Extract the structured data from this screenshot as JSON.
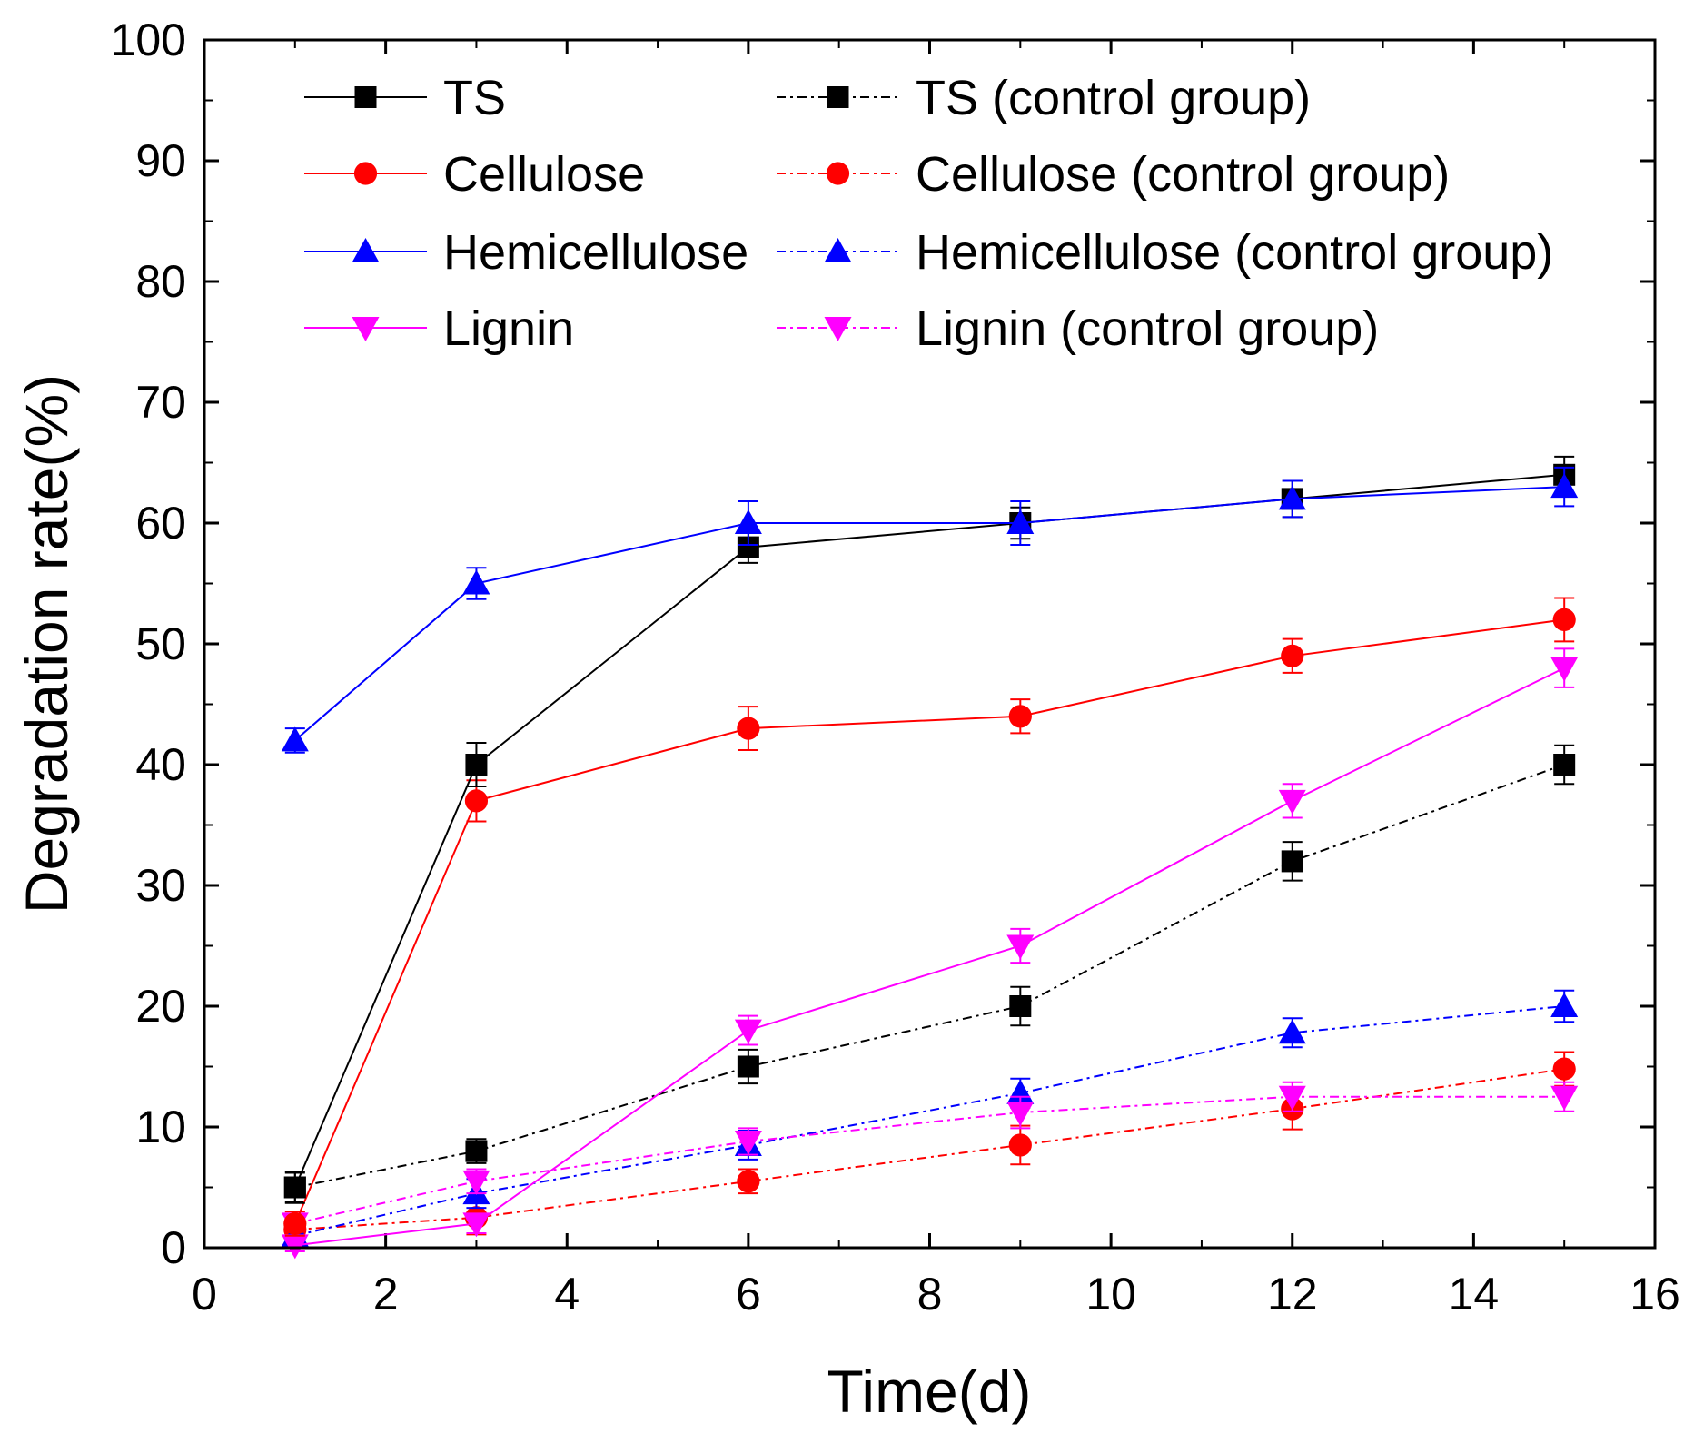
{
  "chart_data": {
    "type": "line",
    "title": "",
    "xlabel": "Time(d)",
    "ylabel": "Degradation rate(%)",
    "xlim": [
      0,
      16
    ],
    "ylim": [
      0,
      100
    ],
    "xticks": [
      0,
      2,
      4,
      6,
      8,
      10,
      12,
      14,
      16
    ],
    "yticks": [
      0,
      10,
      20,
      30,
      40,
      50,
      60,
      70,
      80,
      90,
      100
    ],
    "x": [
      1,
      3,
      6,
      9,
      12,
      15
    ],
    "legend_position": "top-left, two columns",
    "series": [
      {
        "name": "TS",
        "color": "#000000",
        "marker": "square",
        "line": "solid",
        "values": [
          5,
          40,
          58,
          60,
          62,
          64
        ],
        "errors": [
          1.3,
          1.8,
          1.3,
          1.3,
          1.5,
          1.5
        ]
      },
      {
        "name": "Cellulose",
        "color": "#ff0000",
        "marker": "circle",
        "line": "solid",
        "values": [
          2,
          37,
          43,
          44,
          49,
          52
        ],
        "errors": [
          1.0,
          1.7,
          1.8,
          1.4,
          1.4,
          1.8
        ]
      },
      {
        "name": "Hemicellulose",
        "color": "#0000ff",
        "marker": "triangle-up",
        "line": "solid",
        "values": [
          42,
          55,
          60,
          60,
          62,
          63
        ],
        "errors": [
          1.0,
          1.3,
          1.8,
          1.8,
          1.5,
          1.6
        ]
      },
      {
        "name": "Lignin",
        "color": "#ff00ff",
        "marker": "triangle-down",
        "line": "solid",
        "values": [
          0.2,
          2,
          18,
          25,
          37,
          48
        ],
        "errors": [
          0.5,
          0.8,
          1.2,
          1.4,
          1.4,
          1.6
        ]
      },
      {
        "name": "TS (control group)",
        "color": "#000000",
        "marker": "square",
        "line": "dashdot",
        "values": [
          5,
          8,
          15,
          20,
          32,
          40
        ],
        "errors": [
          1.2,
          1.0,
          1.4,
          1.6,
          1.6,
          1.6
        ]
      },
      {
        "name": "Cellulose (control group)",
        "color": "#ff0000",
        "marker": "circle",
        "line": "dashdot",
        "values": [
          1.5,
          2.5,
          5.5,
          8.5,
          11.5,
          14.8
        ],
        "errors": [
          1.0,
          1.4,
          1.0,
          1.6,
          1.7,
          1.4
        ]
      },
      {
        "name": "Hemicellulose (control group)",
        "color": "#0000ff",
        "marker": "triangle-up",
        "line": "dashdot",
        "values": [
          1.0,
          4.5,
          8.5,
          12.8,
          17.8,
          20
        ],
        "errors": [
          0.8,
          1.2,
          1.2,
          1.2,
          1.2,
          1.3
        ]
      },
      {
        "name": "Lignin (control group)",
        "color": "#ff00ff",
        "marker": "triangle-down",
        "line": "dashdot",
        "values": [
          2.0,
          5.5,
          8.8,
          11.2,
          12.5,
          12.5
        ],
        "errors": [
          1.0,
          1.0,
          1.1,
          1.3,
          1.2,
          1.2
        ]
      }
    ]
  }
}
